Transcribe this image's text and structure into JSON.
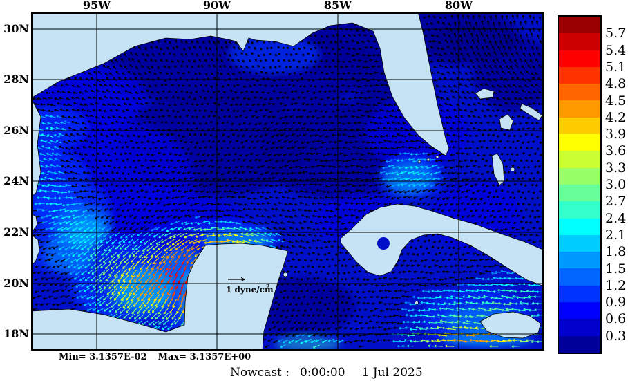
{
  "map": {
    "top_axis_labels": [
      "95W",
      "90W",
      "85W",
      "80W"
    ],
    "left_axis_labels": [
      "30N",
      "28N",
      "26N",
      "24N",
      "22N",
      "20N",
      "18N"
    ],
    "scale_arrow_label": "1 dyne/cm",
    "scale_arrow_exponent": "2"
  },
  "colorbar": {
    "tick_labels": [
      "5.7",
      "5.4",
      "5.1",
      "4.8",
      "4.5",
      "4.2",
      "3.9",
      "3.6",
      "3.3",
      "3.0",
      "2.7",
      "2.4",
      "2.1",
      "1.8",
      "1.5",
      "1.2",
      "0.9",
      "0.6",
      "0.3"
    ],
    "segment_colors_top_to_bottom": [
      "#990000",
      "#cc0000",
      "#ff0000",
      "#ff3300",
      "#ff6600",
      "#ff9900",
      "#ffcc00",
      "#ffff00",
      "#ccff33",
      "#99ff66",
      "#66ff99",
      "#33ffcc",
      "#00ffff",
      "#00ccff",
      "#0099ff",
      "#0066ff",
      "#0033ff",
      "#0000ff",
      "#0000cc",
      "#000099"
    ]
  },
  "footer": {
    "min_text": "Min= 3.1357E-02",
    "max_text": "Max= 3.1357E+00",
    "caption_prefix": "Nowcast :",
    "caption_time": "0:00:00",
    "caption_date": "1 Jul 2025"
  },
  "palette": {
    "land": "#c5e3f4",
    "water": "#0010c8",
    "grid": "#000000",
    "frame": "#000000",
    "arrow_default": "#000000"
  }
}
